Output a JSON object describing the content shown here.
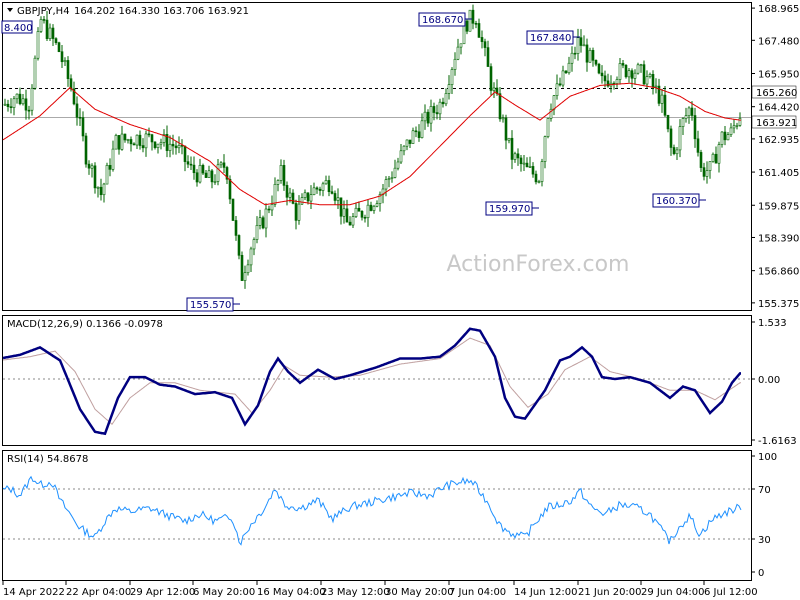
{
  "chart_data": [
    {
      "type": "candlestick",
      "header": {
        "symbol_timeframe": "GBPJPY,H4",
        "ohlc": "164.202 164.330 163.706 163.921"
      },
      "watermark": "ActionForex.com",
      "y_ticks": [
        "168.965",
        "167.480",
        "165.950",
        "164.420",
        "162.935",
        "161.405",
        "159.875",
        "158.390",
        "156.860",
        "155.375"
      ],
      "ylim": [
        155.0,
        169.2
      ],
      "price_labels": {
        "horizontal_line": "165.260",
        "current_price": "163.921"
      },
      "annotations": [
        "8.400",
        "168.670",
        "167.840",
        "159.970",
        "160.370",
        "155.570"
      ],
      "moving_average": "red",
      "candle_color": "#006400"
    },
    {
      "type": "line",
      "title": "MACD(12,26,9) 0.1366 -0.0978",
      "y_ticks": [
        "1.533",
        "0.00",
        "-1.6163"
      ],
      "series_colors": {
        "macd": "#000080",
        "signal": "#c0a0a0"
      }
    },
    {
      "type": "line",
      "title": "RSI(14) 54.8678",
      "y_ticks": [
        "100",
        "70",
        "30",
        "0"
      ],
      "levels": [
        70,
        30
      ],
      "series_color": "#1e90ff"
    }
  ],
  "x_ticks": [
    "14 Apr 2022",
    "22 Apr 04:00",
    "29 Apr 12:00",
    "6 May 20:00",
    "16 May 04:00",
    "23 May 12:00",
    "30 May 20:00",
    "7 Jun 04:00",
    "14 Jun 12:00",
    "21 Jun 20:00",
    "29 Jun 04:00",
    "6 Jul 12:00"
  ],
  "price_anchors": [
    [
      0,
      164.4
    ],
    [
      14,
      164.9
    ],
    [
      28,
      164.6
    ],
    [
      40,
      168.4
    ],
    [
      58,
      167.0
    ],
    [
      72,
      165.0
    ],
    [
      85,
      162.2
    ],
    [
      100,
      160.4
    ],
    [
      115,
      162.8
    ],
    [
      135,
      163.0
    ],
    [
      155,
      162.9
    ],
    [
      175,
      162.6
    ],
    [
      190,
      161.5
    ],
    [
      210,
      161.0
    ],
    [
      225,
      161.8
    ],
    [
      240,
      156.5
    ],
    [
      250,
      158.0
    ],
    [
      265,
      159.5
    ],
    [
      280,
      161.3
    ],
    [
      295,
      159.5
    ],
    [
      310,
      160.5
    ],
    [
      330,
      161.0
    ],
    [
      345,
      159.0
    ],
    [
      360,
      159.5
    ],
    [
      380,
      160.5
    ],
    [
      395,
      161.7
    ],
    [
      410,
      163.0
    ],
    [
      425,
      163.8
    ],
    [
      440,
      164.6
    ],
    [
      455,
      167.0
    ],
    [
      465,
      168.3
    ],
    [
      475,
      168.6
    ],
    [
      490,
      165.5
    ],
    [
      500,
      164.0
    ],
    [
      510,
      162.2
    ],
    [
      525,
      161.5
    ],
    [
      538,
      161.2
    ],
    [
      548,
      164.5
    ],
    [
      560,
      165.5
    ],
    [
      570,
      166.5
    ],
    [
      578,
      167.5
    ],
    [
      590,
      166.5
    ],
    [
      600,
      165.5
    ],
    [
      615,
      166.0
    ],
    [
      630,
      166.2
    ],
    [
      645,
      165.8
    ],
    [
      660,
      164.8
    ],
    [
      672,
      162.0
    ],
    [
      680,
      163.5
    ],
    [
      690,
      164.5
    ],
    [
      700,
      161.5
    ],
    [
      710,
      161.5
    ],
    [
      720,
      163.0
    ],
    [
      730,
      163.2
    ],
    [
      740,
      164.2
    ]
  ],
  "ma_anchors": [
    [
      0,
      162.8
    ],
    [
      40,
      164.0
    ],
    [
      70,
      165.3
    ],
    [
      95,
      164.3
    ],
    [
      130,
      163.6
    ],
    [
      170,
      163.0
    ],
    [
      210,
      161.9
    ],
    [
      240,
      160.6
    ],
    [
      265,
      159.9
    ],
    [
      290,
      160.1
    ],
    [
      320,
      159.9
    ],
    [
      350,
      159.9
    ],
    [
      380,
      160.3
    ],
    [
      410,
      161.2
    ],
    [
      440,
      162.6
    ],
    [
      470,
      164.0
    ],
    [
      495,
      165.1
    ],
    [
      515,
      164.5
    ],
    [
      540,
      163.8
    ],
    [
      570,
      164.9
    ],
    [
      600,
      165.4
    ],
    [
      630,
      165.5
    ],
    [
      655,
      165.3
    ],
    [
      680,
      164.9
    ],
    [
      705,
      164.2
    ],
    [
      725,
      163.9
    ],
    [
      740,
      163.8
    ]
  ],
  "macd_anchors": [
    [
      0,
      0.55
    ],
    [
      20,
      0.65
    ],
    [
      40,
      0.85
    ],
    [
      60,
      0.5
    ],
    [
      80,
      -0.8
    ],
    [
      95,
      -1.4
    ],
    [
      105,
      -1.45
    ],
    [
      118,
      -0.5
    ],
    [
      130,
      0.05
    ],
    [
      145,
      0.05
    ],
    [
      160,
      -0.15
    ],
    [
      175,
      -0.2
    ],
    [
      195,
      -0.4
    ],
    [
      215,
      -0.35
    ],
    [
      232,
      -0.5
    ],
    [
      245,
      -1.2
    ],
    [
      258,
      -0.7
    ],
    [
      270,
      0.2
    ],
    [
      278,
      0.55
    ],
    [
      288,
      0.2
    ],
    [
      300,
      -0.1
    ],
    [
      318,
      0.25
    ],
    [
      335,
      0.0
    ],
    [
      350,
      0.1
    ],
    [
      375,
      0.3
    ],
    [
      400,
      0.55
    ],
    [
      420,
      0.55
    ],
    [
      440,
      0.6
    ],
    [
      455,
      0.9
    ],
    [
      470,
      1.35
    ],
    [
      480,
      1.3
    ],
    [
      495,
      0.6
    ],
    [
      505,
      -0.5
    ],
    [
      515,
      -1.0
    ],
    [
      525,
      -1.05
    ],
    [
      545,
      -0.3
    ],
    [
      560,
      0.5
    ],
    [
      570,
      0.6
    ],
    [
      582,
      0.85
    ],
    [
      592,
      0.6
    ],
    [
      602,
      0.05
    ],
    [
      615,
      0.0
    ],
    [
      630,
      0.05
    ],
    [
      650,
      -0.1
    ],
    [
      670,
      -0.5
    ],
    [
      683,
      -0.2
    ],
    [
      695,
      -0.3
    ],
    [
      710,
      -0.9
    ],
    [
      722,
      -0.6
    ],
    [
      732,
      -0.1
    ],
    [
      740,
      0.15
    ]
  ],
  "signal_anchors": [
    [
      0,
      0.5
    ],
    [
      30,
      0.6
    ],
    [
      55,
      0.75
    ],
    [
      75,
      0.2
    ],
    [
      95,
      -0.8
    ],
    [
      112,
      -1.2
    ],
    [
      130,
      -0.5
    ],
    [
      150,
      -0.1
    ],
    [
      175,
      -0.1
    ],
    [
      200,
      -0.3
    ],
    [
      235,
      -0.4
    ],
    [
      252,
      -0.9
    ],
    [
      270,
      -0.3
    ],
    [
      285,
      0.35
    ],
    [
      300,
      0.1
    ],
    [
      330,
      0.05
    ],
    [
      360,
      0.1
    ],
    [
      400,
      0.4
    ],
    [
      440,
      0.55
    ],
    [
      470,
      1.1
    ],
    [
      490,
      0.9
    ],
    [
      510,
      -0.2
    ],
    [
      528,
      -0.75
    ],
    [
      548,
      -0.4
    ],
    [
      565,
      0.25
    ],
    [
      590,
      0.6
    ],
    [
      610,
      0.2
    ],
    [
      640,
      0.0
    ],
    [
      670,
      -0.3
    ],
    [
      695,
      -0.3
    ],
    [
      715,
      -0.55
    ],
    [
      740,
      -0.1
    ]
  ],
  "rsi_anchors": [
    [
      0,
      70
    ],
    [
      10,
      72
    ],
    [
      20,
      66
    ],
    [
      32,
      82
    ],
    [
      40,
      75
    ],
    [
      52,
      78
    ],
    [
      60,
      62
    ],
    [
      70,
      50
    ],
    [
      80,
      38
    ],
    [
      95,
      30
    ],
    [
      105,
      44
    ],
    [
      115,
      55
    ],
    [
      130,
      52
    ],
    [
      150,
      55
    ],
    [
      170,
      48
    ],
    [
      185,
      44
    ],
    [
      200,
      50
    ],
    [
      215,
      44
    ],
    [
      232,
      48
    ],
    [
      240,
      25
    ],
    [
      250,
      40
    ],
    [
      265,
      56
    ],
    [
      275,
      72
    ],
    [
      285,
      58
    ],
    [
      300,
      55
    ],
    [
      318,
      62
    ],
    [
      332,
      46
    ],
    [
      350,
      56
    ],
    [
      370,
      60
    ],
    [
      390,
      64
    ],
    [
      410,
      68
    ],
    [
      430,
      66
    ],
    [
      445,
      74
    ],
    [
      462,
      78
    ],
    [
      472,
      78
    ],
    [
      488,
      60
    ],
    [
      500,
      40
    ],
    [
      512,
      33
    ],
    [
      525,
      30
    ],
    [
      535,
      42
    ],
    [
      548,
      56
    ],
    [
      560,
      58
    ],
    [
      572,
      62
    ],
    [
      580,
      70
    ],
    [
      592,
      55
    ],
    [
      605,
      50
    ],
    [
      620,
      58
    ],
    [
      635,
      56
    ],
    [
      650,
      50
    ],
    [
      670,
      26
    ],
    [
      680,
      40
    ],
    [
      690,
      48
    ],
    [
      700,
      32
    ],
    [
      712,
      45
    ],
    [
      722,
      50
    ],
    [
      740,
      56
    ]
  ]
}
